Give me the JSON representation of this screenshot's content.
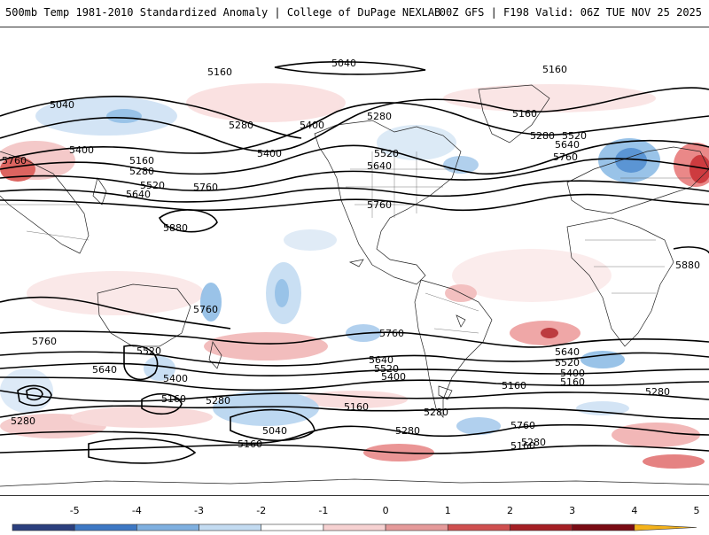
{
  "header": {
    "left_title": "500mb Temp 1981-2010 Standardized Anomaly | College of DuPage NEXLAB",
    "right_title": "00Z GFS | F198 Valid: 06Z TUE NOV 25 2025"
  },
  "map": {
    "projection": "cylindrical equidistant, global",
    "field": "500mb temperature standardized anomaly (shaded)",
    "contour_field": "500mb geopotential height (black contours)",
    "contour_labels": [
      {
        "id": "c1",
        "text": "5040"
      },
      {
        "id": "c2",
        "text": "5160"
      },
      {
        "id": "c3",
        "text": "5160"
      },
      {
        "id": "c4",
        "text": "5040"
      },
      {
        "id": "c5",
        "text": "5280"
      },
      {
        "id": "c6",
        "text": "5280"
      },
      {
        "id": "c7",
        "text": "5400"
      },
      {
        "id": "c8",
        "text": "5160"
      },
      {
        "id": "c9",
        "text": "5280"
      },
      {
        "id": "c10",
        "text": "5520"
      },
      {
        "id": "c11",
        "text": "5640"
      },
      {
        "id": "c12",
        "text": "5760"
      },
      {
        "id": "c13",
        "text": "5400"
      },
      {
        "id": "c14",
        "text": "5160"
      },
      {
        "id": "c15",
        "text": "5280"
      },
      {
        "id": "c16",
        "text": "5520"
      },
      {
        "id": "c17",
        "text": "5640"
      },
      {
        "id": "c18",
        "text": "5760"
      },
      {
        "id": "c19",
        "text": "5400"
      },
      {
        "id": "c20",
        "text": "5520"
      },
      {
        "id": "c21",
        "text": "5640"
      },
      {
        "id": "c22",
        "text": "5760"
      },
      {
        "id": "c23",
        "text": "5760"
      },
      {
        "id": "c24",
        "text": "5880"
      },
      {
        "id": "c25",
        "text": "5880"
      },
      {
        "id": "c26",
        "text": "5760"
      },
      {
        "id": "c27",
        "text": "5760"
      },
      {
        "id": "c28",
        "text": "5760"
      },
      {
        "id": "c29",
        "text": "5640"
      },
      {
        "id": "c30",
        "text": "5520"
      },
      {
        "id": "c31",
        "text": "5400"
      },
      {
        "id": "c32",
        "text": "5160"
      },
      {
        "id": "c33",
        "text": "5280"
      },
      {
        "id": "c34",
        "text": "5040"
      },
      {
        "id": "c35",
        "text": "5160"
      },
      {
        "id": "c36",
        "text": "5640"
      },
      {
        "id": "c37",
        "text": "5520"
      },
      {
        "id": "c38",
        "text": "5400"
      },
      {
        "id": "c39",
        "text": "5160"
      },
      {
        "id": "c40",
        "text": "5280"
      },
      {
        "id": "c41",
        "text": "5160"
      },
      {
        "id": "c42",
        "text": "5280"
      },
      {
        "id": "c43",
        "text": "5760"
      },
      {
        "id": "c44",
        "text": "5640"
      },
      {
        "id": "c45",
        "text": "5520"
      },
      {
        "id": "c46",
        "text": "5400"
      },
      {
        "id": "c47",
        "text": "5160"
      },
      {
        "id": "c48",
        "text": "5280"
      },
      {
        "id": "c49",
        "text": "5280"
      },
      {
        "id": "c50",
        "text": "5160"
      },
      {
        "id": "c51",
        "text": "5280"
      }
    ]
  },
  "colorbar": {
    "ticks": [
      "-5",
      "-4",
      "-3",
      "-2",
      "-1",
      "0",
      "1",
      "2",
      "3",
      "4",
      "5"
    ],
    "colors": [
      "#4b2a8c",
      "#2b3f7e",
      "#3d78c4",
      "#7fb0e0",
      "#c3dbf1",
      "#ffffff",
      "#f6d1d1",
      "#e59a9a",
      "#cf4f4f",
      "#a51f24",
      "#7a0b14",
      "#f4b21a"
    ]
  }
}
